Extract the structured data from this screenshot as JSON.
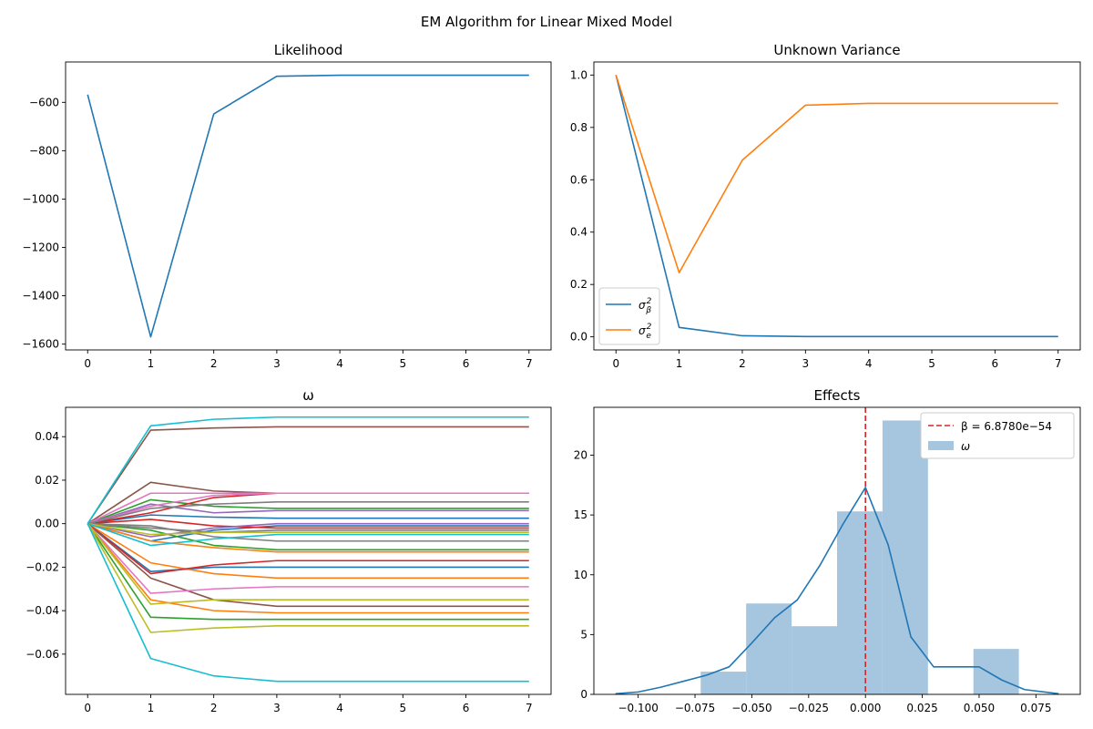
{
  "figure": {
    "title": "EM Algorithm for Linear Mixed Model"
  },
  "chart_data": [
    {
      "type": "line",
      "title": "Likelihood",
      "xlabel": "",
      "ylabel": "",
      "x": [
        0,
        1,
        2,
        3,
        4,
        5,
        6,
        7
      ],
      "series": [
        {
          "values": [
            -568,
            -1570,
            -648,
            -492,
            -488,
            -488,
            -488,
            -488
          ],
          "color": "#1f77b4"
        }
      ],
      "xlim": [
        -0.35,
        7.35
      ],
      "ylim": [
        -1624,
        -433
      ],
      "xticks": [
        0,
        1,
        2,
        3,
        4,
        5,
        6,
        7
      ],
      "yticks": [
        -1600,
        -1400,
        -1200,
        -1000,
        -800,
        -600
      ],
      "grid": false,
      "legend": "none"
    },
    {
      "type": "line",
      "title": "Unknown Variance",
      "xlabel": "",
      "ylabel": "",
      "x": [
        0,
        1,
        2,
        3,
        4,
        5,
        6,
        7
      ],
      "series": [
        {
          "name": "σ_β²",
          "values": [
            1.0,
            0.036,
            0.004,
            0.001,
            0.001,
            0.001,
            0.001,
            0.001
          ],
          "color": "#1f77b4"
        },
        {
          "name": "σ_e²",
          "values": [
            1.0,
            0.245,
            0.675,
            0.885,
            0.892,
            0.892,
            0.892,
            0.892
          ],
          "color": "#ff7f0e"
        }
      ],
      "xlim": [
        -0.35,
        7.35
      ],
      "ylim": [
        -0.05,
        1.05
      ],
      "xticks": [
        0,
        1,
        2,
        3,
        4,
        5,
        6,
        7
      ],
      "yticks": [
        0.0,
        0.2,
        0.4,
        0.6,
        0.8,
        1.0
      ],
      "grid": false,
      "legend": "lower-left"
    },
    {
      "type": "line",
      "title": "ω",
      "xlabel": "",
      "ylabel": "",
      "x": [
        0,
        1,
        2,
        3,
        4,
        5,
        6,
        7
      ],
      "series": [
        {
          "values": [
            0,
            -0.008,
            -0.003,
            -0.001,
            -0.001,
            -0.001,
            -0.001,
            -0.001
          ],
          "color": "#1f77b4"
        },
        {
          "values": [
            0,
            -0.022,
            -0.02,
            -0.02,
            -0.02,
            -0.02,
            -0.02,
            -0.02
          ],
          "color": "#1f77b4"
        },
        {
          "values": [
            0,
            0.004,
            0.003,
            0.0025,
            0.0025,
            0.0025,
            0.0025,
            0.0025
          ],
          "color": "#1f77b4"
        },
        {
          "values": [
            0,
            -0.018,
            -0.023,
            -0.025,
            -0.025,
            -0.025,
            -0.025,
            -0.025
          ],
          "color": "#ff7f0e"
        },
        {
          "values": [
            0,
            -0.035,
            -0.04,
            -0.041,
            -0.041,
            -0.041,
            -0.041,
            -0.041
          ],
          "color": "#ff7f0e"
        },
        {
          "values": [
            0,
            -0.008,
            -0.011,
            -0.013,
            -0.013,
            -0.013,
            -0.013,
            -0.013
          ],
          "color": "#ff7f0e"
        },
        {
          "values": [
            0,
            -0.043,
            -0.044,
            -0.044,
            -0.044,
            -0.044,
            -0.044,
            -0.044
          ],
          "color": "#2ca02c"
        },
        {
          "values": [
            0,
            0.011,
            0.008,
            0.007,
            0.007,
            0.007,
            0.007,
            0.007
          ],
          "color": "#2ca02c"
        },
        {
          "values": [
            0,
            -0.003,
            -0.01,
            -0.012,
            -0.012,
            -0.012,
            -0.012,
            -0.012
          ],
          "color": "#2ca02c"
        },
        {
          "values": [
            0,
            -0.023,
            -0.019,
            -0.017,
            -0.017,
            -0.017,
            -0.017,
            -0.017
          ],
          "color": "#d62728"
        },
        {
          "values": [
            0,
            0.002,
            -0.001,
            -0.002,
            -0.002,
            -0.002,
            -0.002,
            -0.002
          ],
          "color": "#d62728"
        },
        {
          "values": [
            0,
            0.005,
            0.012,
            0.014,
            0.014,
            0.014,
            0.014,
            0.014
          ],
          "color": "#d62728"
        },
        {
          "values": [
            0,
            0.009,
            0.005,
            0.006,
            0.006,
            0.006,
            0.006,
            0.006
          ],
          "color": "#9467bd"
        },
        {
          "values": [
            0,
            -0.006,
            -0.002,
            0.0,
            0.0,
            0.0,
            0.0,
            0.0
          ],
          "color": "#9467bd"
        },
        {
          "values": [
            0,
            0.019,
            0.015,
            0.014,
            0.014,
            0.014,
            0.014,
            0.014
          ],
          "color": "#8c564b"
        },
        {
          "values": [
            0,
            0.043,
            0.044,
            0.0445,
            0.0445,
            0.0445,
            0.0445,
            0.0445
          ],
          "color": "#8c564b"
        },
        {
          "values": [
            0,
            -0.025,
            -0.035,
            -0.038,
            -0.038,
            -0.038,
            -0.038,
            -0.038
          ],
          "color": "#8c564b"
        },
        {
          "values": [
            0,
            0.008,
            0.013,
            0.014,
            0.014,
            0.014,
            0.014,
            0.014
          ],
          "color": "#e377c2"
        },
        {
          "values": [
            0,
            -0.032,
            -0.03,
            -0.029,
            -0.029,
            -0.029,
            -0.029,
            -0.029
          ],
          "color": "#e377c2"
        },
        {
          "values": [
            0,
            0.014,
            0.014,
            0.014,
            0.014,
            0.014,
            0.014,
            0.014
          ],
          "color": "#e377c2"
        },
        {
          "values": [
            0,
            0.007,
            0.009,
            0.01,
            0.01,
            0.01,
            0.01,
            0.01
          ],
          "color": "#7f7f7f"
        },
        {
          "values": [
            0,
            -0.001,
            -0.006,
            -0.008,
            -0.008,
            -0.008,
            -0.008,
            -0.008
          ],
          "color": "#7f7f7f"
        },
        {
          "values": [
            0,
            -0.002,
            -0.004,
            -0.003,
            -0.003,
            -0.003,
            -0.003,
            -0.003
          ],
          "color": "#7f7f7f"
        },
        {
          "values": [
            0,
            -0.05,
            -0.048,
            -0.047,
            -0.047,
            -0.047,
            -0.047,
            -0.047
          ],
          "color": "#bcbd22"
        },
        {
          "values": [
            0,
            -0.037,
            -0.035,
            -0.035,
            -0.035,
            -0.035,
            -0.035,
            -0.035
          ],
          "color": "#bcbd22"
        },
        {
          "values": [
            0,
            -0.005,
            -0.004,
            -0.004,
            -0.004,
            -0.004,
            -0.004,
            -0.004
          ],
          "color": "#bcbd22"
        },
        {
          "values": [
            0,
            0.045,
            0.048,
            0.049,
            0.049,
            0.049,
            0.049,
            0.049
          ],
          "color": "#17becf"
        },
        {
          "values": [
            0,
            -0.062,
            -0.07,
            -0.0725,
            -0.0725,
            -0.0725,
            -0.0725,
            -0.0725
          ],
          "color": "#17becf"
        },
        {
          "values": [
            0,
            -0.01,
            -0.007,
            -0.005,
            -0.005,
            -0.005,
            -0.005,
            -0.005
          ],
          "color": "#17becf"
        }
      ],
      "xlim": [
        -0.35,
        7.35
      ],
      "ylim": [
        -0.0785,
        0.0535
      ],
      "xticks": [
        0,
        1,
        2,
        3,
        4,
        5,
        6,
        7
      ],
      "yticks": [
        -0.06,
        -0.04,
        -0.02,
        0.0,
        0.02,
        0.04
      ],
      "grid": false,
      "legend": "none"
    },
    {
      "type": "histogram",
      "title": "Effects",
      "xlabel": "",
      "ylabel": "",
      "bins": [
        {
          "x0": -0.0725,
          "x1": -0.0525,
          "value": 1.9
        },
        {
          "x0": -0.0525,
          "x1": -0.0325,
          "value": 7.6
        },
        {
          "x0": -0.0325,
          "x1": -0.0125,
          "value": 5.7
        },
        {
          "x0": -0.0125,
          "x1": 0.0075,
          "value": 15.3
        },
        {
          "x0": 0.0075,
          "x1": 0.0275,
          "value": 22.9
        },
        {
          "x0": 0.0475,
          "x1": 0.0675,
          "value": 3.8
        }
      ],
      "kde": {
        "x": [
          -0.11,
          -0.1,
          -0.09,
          -0.08,
          -0.07,
          -0.06,
          -0.05,
          -0.04,
          -0.03,
          -0.02,
          -0.01,
          0.0,
          0.01,
          0.02,
          0.03,
          0.04,
          0.05,
          0.06,
          0.07,
          0.085
        ],
        "y": [
          0.05,
          0.2,
          0.6,
          1.1,
          1.6,
          2.3,
          4.3,
          6.4,
          7.9,
          10.8,
          14.2,
          17.3,
          12.5,
          4.8,
          2.3,
          2.3,
          2.3,
          1.2,
          0.4,
          0.05
        ]
      },
      "vline": {
        "x": 0.0,
        "label": "β = 6.8780e−54",
        "color": "#d62728"
      },
      "hist_label": "ω",
      "hist_color": "#a6c6e0",
      "kde_color": "#1f77b4",
      "xlim": [
        -0.1195,
        0.0945
      ],
      "ylim": [
        0,
        24
      ],
      "xticks": [
        -0.1,
        -0.075,
        -0.05,
        -0.025,
        0.0,
        0.025,
        0.05,
        0.075
      ],
      "yticks": [
        0,
        5,
        10,
        15,
        20
      ],
      "grid": false,
      "legend": "upper-right"
    }
  ]
}
